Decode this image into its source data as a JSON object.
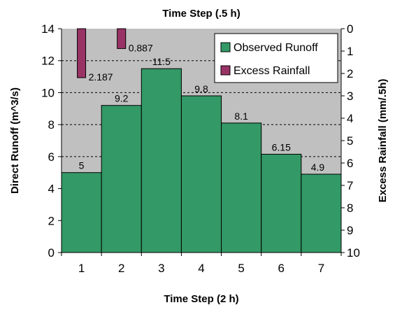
{
  "chart_data": {
    "type": "bar",
    "title": "Time Step (.5 h)",
    "xlabel": "Time Step (2 h)",
    "ylabel": "Direct Runoff (m^3/s)",
    "y2label": "Excess Rainfall (mm/.5h)",
    "categories": [
      "1",
      "2",
      "3",
      "4",
      "5",
      "6",
      "7"
    ],
    "ylim": [
      0,
      14
    ],
    "yticks": [
      "0",
      "2",
      "4",
      "6",
      "8",
      "10",
      "12",
      "14"
    ],
    "y2lim": [
      0,
      10
    ],
    "y2ticks": [
      "0",
      "1",
      "2",
      "3",
      "4",
      "5",
      "6",
      "7",
      "8",
      "9",
      "10"
    ],
    "y2_inverted": true,
    "grid": "dashed horizontal",
    "legend_position": "top-right",
    "series": [
      {
        "name": "Observed Runoff",
        "axis": "left",
        "color": "#339966",
        "values": [
          5,
          9.2,
          11.5,
          9.8,
          8.1,
          6.15,
          4.9
        ],
        "labels": [
          "5",
          "9.2",
          "11.5",
          "9.8",
          "8.1",
          "6.15",
          "4.9"
        ]
      },
      {
        "name": "Excess Rainfall",
        "axis": "right",
        "color": "#993366",
        "x": [
          1,
          2
        ],
        "values": [
          2.187,
          0.887
        ],
        "labels": [
          "2.187",
          "0.887"
        ]
      }
    ]
  }
}
